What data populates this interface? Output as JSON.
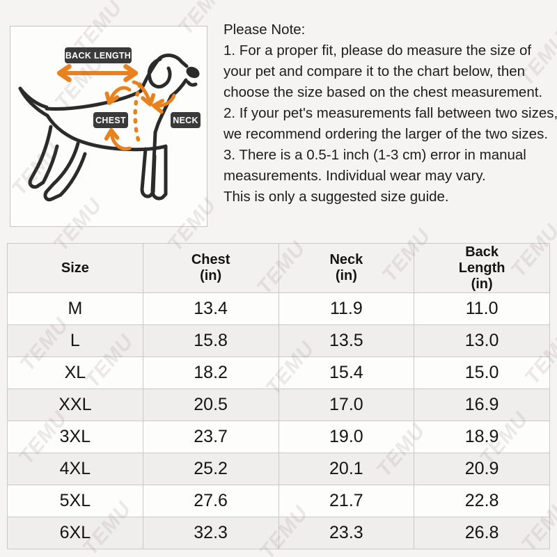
{
  "page": {
    "background": "#f6f4f2",
    "watermark_text": "TEMU"
  },
  "diagram": {
    "badges": {
      "back_length": "BACK LENGTH",
      "chest": "CHEST",
      "neck": "NECK"
    },
    "colors": {
      "arrow_orange": "#E8821E",
      "badge_bg": "#3A3A3A",
      "badge_text": "#FFFFFF",
      "dog_outline": "#2B2B2B"
    }
  },
  "note": {
    "title": "Please Note:",
    "lines": [
      "1. For a proper fit, please do measure the size of your pet and compare it to the chart below, then choose the size based on the chest measurement.",
      "2. If your pet's measurements fall between two sizes, we recommend ordering the larger of the two sizes.",
      "3. There is a 0.5-1 inch (1-3 cm) error in manual measurements. Individual wear may vary.",
      "This is only a suggested size guide."
    ]
  },
  "chart_data": {
    "type": "table",
    "columns": [
      "Size",
      "Chest (in)",
      "Neck (in)",
      "Back Length (in)"
    ],
    "column_header_lines": [
      [
        "Size"
      ],
      [
        "Chest",
        "(in)"
      ],
      [
        "Neck",
        "(in)"
      ],
      [
        "Back",
        "Length",
        "(in)"
      ]
    ],
    "rows": [
      [
        "M",
        "13.4",
        "11.9",
        "11.0"
      ],
      [
        "L",
        "15.8",
        "13.5",
        "13.0"
      ],
      [
        "XL",
        "18.2",
        "15.4",
        "15.0"
      ],
      [
        "XXL",
        "20.5",
        "17.0",
        "16.9"
      ],
      [
        "3XL",
        "23.7",
        "19.0",
        "18.9"
      ],
      [
        "4XL",
        "25.2",
        "20.1",
        "20.9"
      ],
      [
        "5XL",
        "27.6",
        "21.7",
        "22.8"
      ],
      [
        "6XL",
        "32.3",
        "23.3",
        "26.8"
      ]
    ]
  }
}
